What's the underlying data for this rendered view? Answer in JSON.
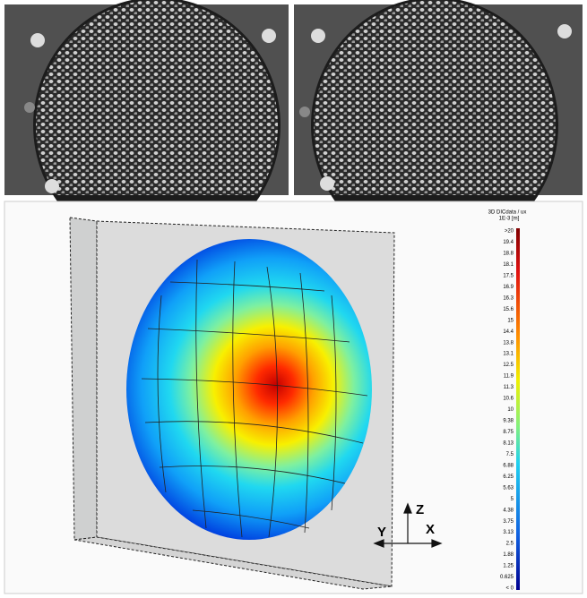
{
  "colorbar": {
    "title": "3D DICdata / ux",
    "unit": "1E-3 [m]",
    "labels": [
      ">20",
      "19.4",
      "18.8",
      "18.1",
      "17.5",
      "16.9",
      "16.3",
      "15.6",
      "15",
      "14.4",
      "13.8",
      "13.1",
      "12.5",
      "11.9",
      "11.3",
      "10.6",
      "10",
      "9.38",
      "8.75",
      "8.13",
      "7.5",
      "6.88",
      "6.25",
      "5.63",
      "5",
      "4.38",
      "3.75",
      "3.13",
      "2.5",
      "1.88",
      "1.25",
      "0.625",
      "< 0"
    ]
  },
  "axes": {
    "y": "Y",
    "z": "Z",
    "x": "X"
  }
}
